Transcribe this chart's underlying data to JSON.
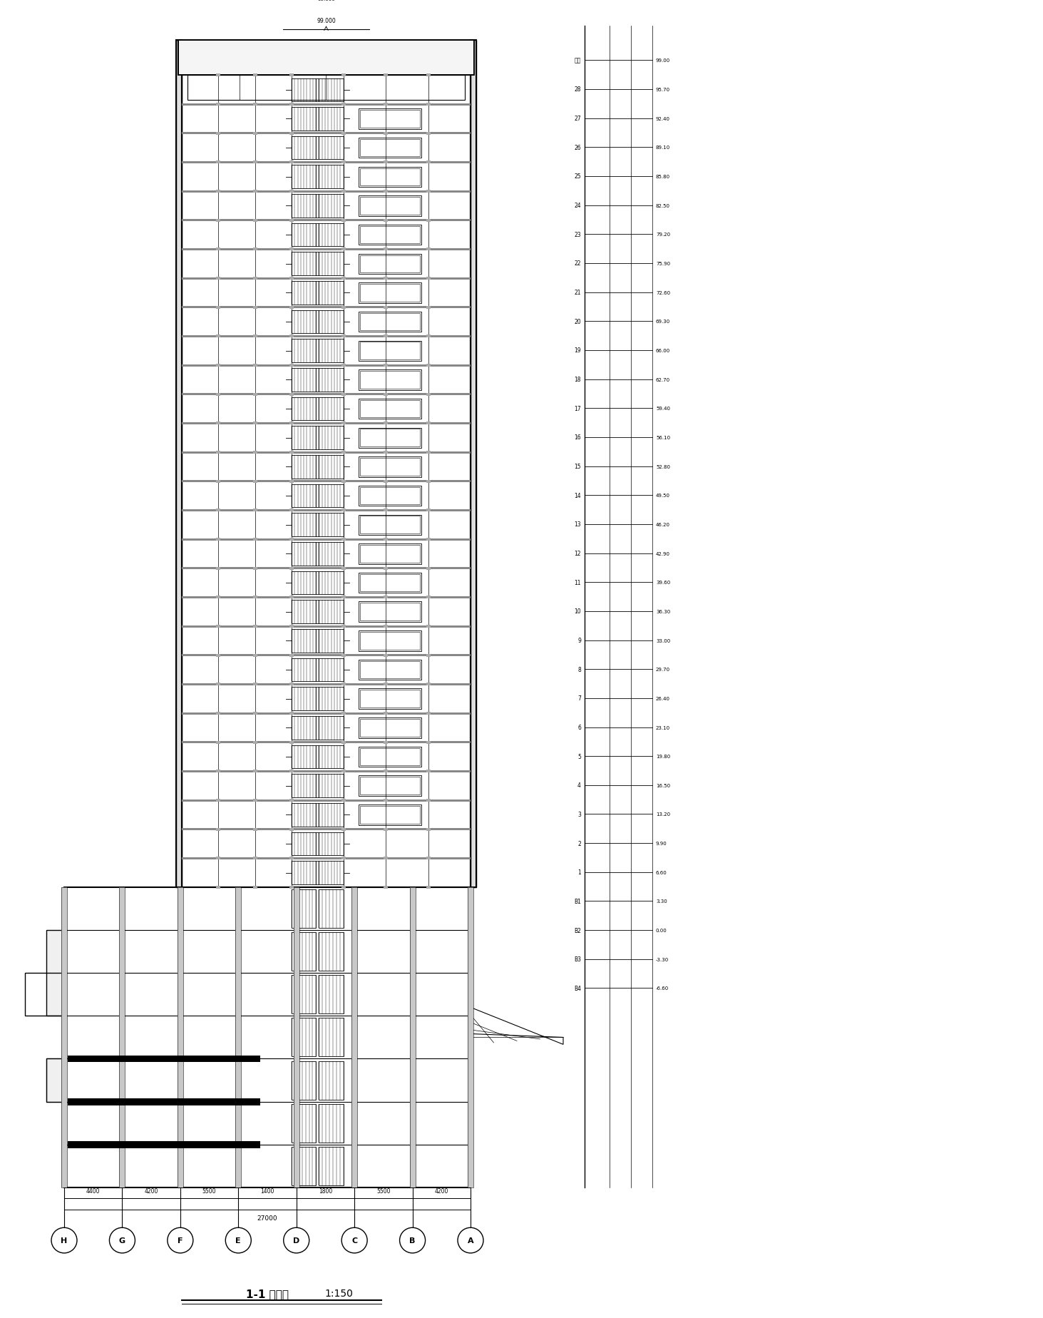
{
  "title": "1-1 剖面图  1:150",
  "bg_color": "#ffffff",
  "line_color": "#000000",
  "fig_width": 14.63,
  "fig_height": 18.49,
  "dpi": 100,
  "tower_floors": 28,
  "podium_floors": 7,
  "axis_labels": [
    "H",
    "G",
    "F",
    "E",
    "D",
    "C",
    "B",
    "A"
  ],
  "axis_dims": [
    "4400",
    "4200",
    "5500",
    "1400",
    "1800",
    "5500",
    "4200"
  ],
  "bottom_total": "27000",
  "floor_labels_right": [
    "屋顶",
    "28",
    "27",
    "26",
    "25",
    "24",
    "23",
    "22",
    "21",
    "20",
    "19",
    "18",
    "17",
    "16",
    "15",
    "14",
    "13",
    "12",
    "11",
    "10",
    "9",
    "8",
    "7",
    "6",
    "5",
    "4",
    "3",
    "2",
    "1",
    "B1",
    "B2",
    "B3"
  ],
  "elevation_labels": [
    "99.00",
    "95.70",
    "92.40",
    "89.10",
    "85.80",
    "82.50",
    "79.20",
    "75.90",
    "72.60",
    "69.30",
    "66.00",
    "62.70",
    "59.40",
    "56.10",
    "52.80",
    "49.50",
    "46.20",
    "42.90",
    "39.60",
    "36.30",
    "33.00",
    "29.70",
    "26.40",
    "23.10",
    "19.80",
    "16.50",
    "13.20",
    "9.90",
    "6.60",
    "3.30",
    "0.00",
    "-3.30",
    "-6.60"
  ]
}
